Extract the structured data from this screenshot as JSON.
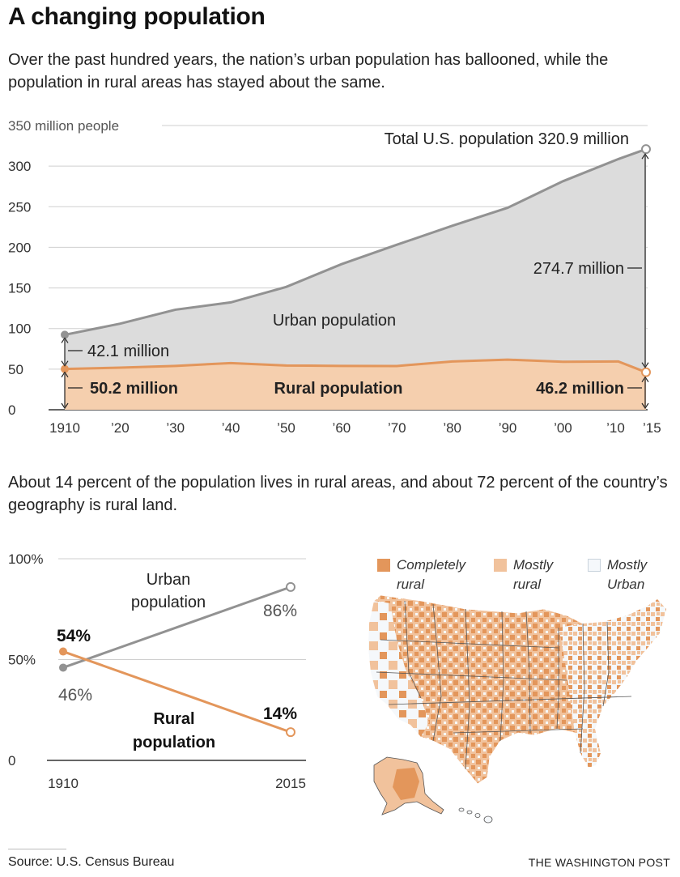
{
  "header": {
    "title": "A changing population",
    "dek": "Over the past hundred years, the nation’s urban population has ballooned, while the population in rural areas has stayed about the same.",
    "dek2": "About 14 percent of the population lives in rural areas, and about 72 percent of the country’s geography is rural land."
  },
  "colors": {
    "rural": "#e3965b",
    "rural_fill": "#f5cfae",
    "urban_line": "#929292",
    "urban_fill": "#dcdcdc",
    "mostly_rural": "#f1c29c",
    "mostly_urban": "#f5f8fb"
  },
  "chart_data": [
    {
      "type": "area",
      "title": "",
      "ylabel": "350 million people",
      "xlabel": "",
      "ylim": [
        0,
        350
      ],
      "grid": true,
      "yticks": [
        0,
        50,
        100,
        150,
        200,
        250,
        300,
        350
      ],
      "ytick_labels": [
        "0",
        "50",
        "100",
        "150",
        "200",
        "250",
        "300",
        "350 million people"
      ],
      "xticks": [
        1910,
        1920,
        1930,
        1940,
        1950,
        1960,
        1970,
        1980,
        1990,
        2000,
        2010,
        2015
      ],
      "xtick_labels": [
        "1910",
        "’20",
        "’30",
        "’40",
        "’50",
        "’60",
        "’70",
        "’80",
        "’90",
        "’00",
        "’10",
        "’15"
      ],
      "series": [
        {
          "name": "Total U.S. population",
          "x": [
            1910,
            1920,
            1930,
            1940,
            1950,
            1960,
            1970,
            1980,
            1990,
            2000,
            2010,
            2015
          ],
          "values": [
            92.3,
            106.0,
            123.2,
            132.2,
            151.3,
            179.3,
            203.2,
            226.5,
            248.7,
            281.4,
            308.7,
            320.9
          ]
        },
        {
          "name": "Rural population",
          "x": [
            1910,
            1920,
            1930,
            1940,
            1950,
            1960,
            1970,
            1980,
            1990,
            2000,
            2010,
            2015
          ],
          "values": [
            50.2,
            51.8,
            54.0,
            57.5,
            54.5,
            54.0,
            53.9,
            59.5,
            61.7,
            59.1,
            59.5,
            46.2
          ]
        }
      ],
      "annotations": {
        "total": "Total U.S. population 320.9 million",
        "urban_area": "Urban population",
        "rural_area": "Rural population",
        "urban_1910": "42.1 million",
        "rural_1910": "50.2 million",
        "urban_2015": "274.7 million",
        "rural_2015": "46.2 million"
      }
    },
    {
      "type": "line",
      "title": "",
      "xlabel": "",
      "ylabel": "",
      "ylim": [
        0,
        100
      ],
      "grid": true,
      "yticks": [
        0,
        50,
        100
      ],
      "ytick_labels": [
        "0",
        "50%",
        "100%"
      ],
      "x": [
        1910,
        2015
      ],
      "xtick_labels": [
        "1910",
        "2015"
      ],
      "series": [
        {
          "name": "Urban population",
          "values": [
            46,
            86
          ],
          "labels": [
            "46%",
            "86%"
          ]
        },
        {
          "name": "Rural population",
          "values": [
            54,
            14
          ],
          "labels": [
            "54%",
            "14%"
          ]
        }
      ]
    }
  ],
  "map": {
    "legend": [
      {
        "label": "Completely rural",
        "color": "#e3965b"
      },
      {
        "label": "Mostly rural",
        "color": "#f1c29c"
      },
      {
        "label": "Mostly Urban",
        "color": "#f5f8fb"
      }
    ]
  },
  "footer": {
    "source": "Source: U.S. Census Bureau",
    "credit": "THE WASHINGTON POST"
  }
}
